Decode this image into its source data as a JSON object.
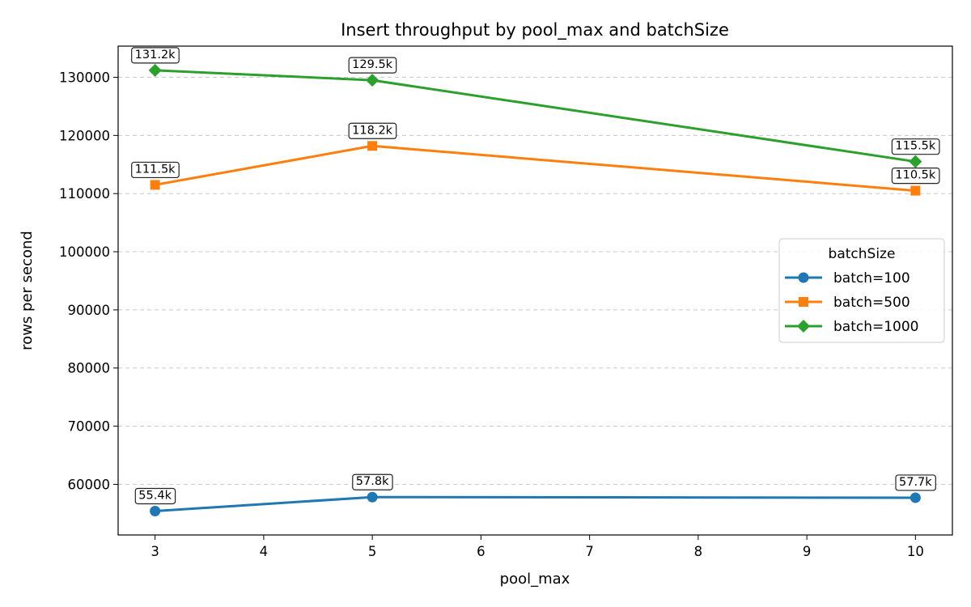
{
  "chart_data": {
    "type": "line",
    "title": "Insert throughput by pool_max and batchSize",
    "xlabel": "pool_max",
    "ylabel": "rows per second",
    "xlim": [
      2.66,
      10.34
    ],
    "ylim": [
      51290,
      135360
    ],
    "xticks": [
      3,
      4,
      5,
      6,
      7,
      8,
      9,
      10
    ],
    "yticks": [
      60000,
      70000,
      80000,
      90000,
      100000,
      110000,
      120000,
      130000
    ],
    "grid": "y-dashed",
    "legend": {
      "title": "batchSize",
      "placement": "center-right"
    },
    "x": [
      3,
      5,
      10
    ],
    "series": [
      {
        "name": "batch=100",
        "values": [
          55400,
          57800,
          57700
        ],
        "labels": [
          "55.4k",
          "57.8k",
          "57.7k"
        ],
        "color": "#1f77b4",
        "marker": "circle"
      },
      {
        "name": "batch=500",
        "values": [
          111500,
          118200,
          110500
        ],
        "labels": [
          "111.5k",
          "118.2k",
          "110.5k"
        ],
        "color": "#ff7f0e",
        "marker": "square"
      },
      {
        "name": "batch=1000",
        "values": [
          131200,
          129500,
          115500
        ],
        "labels": [
          "131.2k",
          "129.5k",
          "115.5k"
        ],
        "color": "#2ca02c",
        "marker": "diamond"
      }
    ]
  }
}
